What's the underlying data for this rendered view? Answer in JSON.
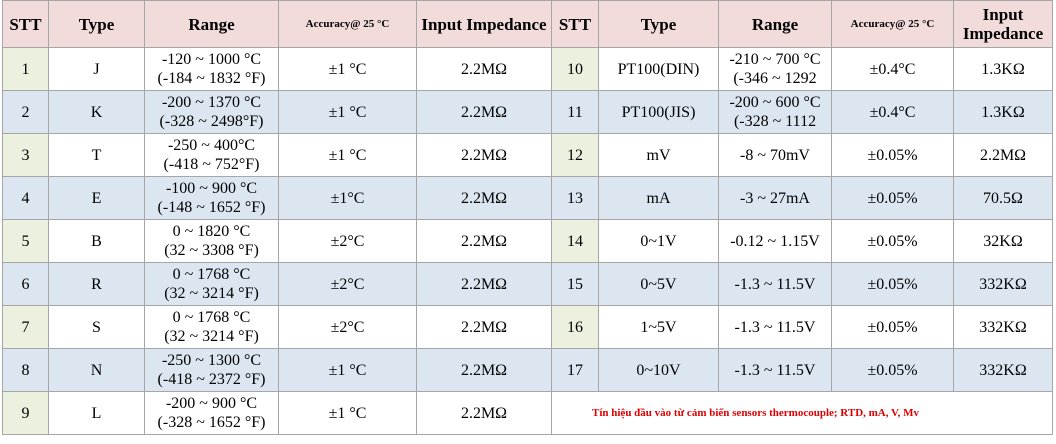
{
  "table": {
    "header": [
      "STT",
      "Type",
      "Range",
      "Accuracy@ 25 °C",
      "Input Impedance",
      "STT",
      "Type",
      "Range",
      "Accuracy@ 25 °C",
      "Input Impedance"
    ],
    "rows": [
      {
        "left": [
          "1",
          "J",
          [
            "-120 ~ 1000 °C",
            "(-184 ~ 1832 °F)"
          ],
          "±1 °C",
          "2.2MΩ"
        ],
        "right": [
          "10",
          "PT100(DIN)",
          [
            "-210 ~ 700 °C",
            "(-346 ~ 1292"
          ],
          "±0.4°C",
          "1.3KΩ"
        ]
      },
      {
        "left": [
          "2",
          "K",
          [
            "-200 ~ 1370 °C",
            "(-328 ~ 2498°F)"
          ],
          "±1 °C",
          "2.2MΩ"
        ],
        "right": [
          "11",
          "PT100(JIS)",
          [
            "-200 ~ 600 °C",
            "(-328 ~ 1112"
          ],
          "±0.4°C",
          "1.3KΩ"
        ]
      },
      {
        "left": [
          "3",
          "T",
          [
            "-250 ~ 400°C",
            "(-418 ~ 752°F)"
          ],
          "±1 °C",
          "2.2MΩ"
        ],
        "right": [
          "12",
          "mV",
          [
            "-8 ~ 70mV"
          ],
          "±0.05%",
          "2.2MΩ"
        ]
      },
      {
        "left": [
          "4",
          "E",
          [
            "-100 ~ 900 °C",
            "(-148 ~ 1652 °F)"
          ],
          "±1°C",
          "2.2MΩ"
        ],
        "right": [
          "13",
          "mA",
          [
            "-3 ~ 27mA"
          ],
          "±0.05%",
          "70.5Ω"
        ]
      },
      {
        "left": [
          "5",
          "B",
          [
            "0 ~ 1820 °C",
            "(32 ~ 3308 °F)"
          ],
          "±2°C",
          "2.2MΩ"
        ],
        "right": [
          "14",
          "0~1V",
          [
            "-0.12 ~ 1.15V"
          ],
          "±0.05%",
          "32KΩ"
        ]
      },
      {
        "left": [
          "6",
          "R",
          [
            "0 ~ 1768 °C",
            "(32 ~ 3214 °F)"
          ],
          "±2°C",
          "2.2MΩ"
        ],
        "right": [
          "15",
          "0~5V",
          [
            "-1.3 ~ 11.5V"
          ],
          "±0.05%",
          "332KΩ"
        ]
      },
      {
        "left": [
          "7",
          "S",
          [
            "0 ~ 1768 °C",
            "(32 ~ 3214 °F)"
          ],
          "±2°C",
          "2.2MΩ"
        ],
        "right": [
          "16",
          "1~5V",
          [
            "-1.3 ~ 11.5V"
          ],
          "±0.05%",
          "332KΩ"
        ]
      },
      {
        "left": [
          "8",
          "N",
          [
            "-250 ~ 1300 °C",
            "(-418 ~ 2372 °F)"
          ],
          "±1 °C",
          "2.2MΩ"
        ],
        "right": [
          "17",
          "0~10V",
          [
            "-1.3 ~ 11.5V"
          ],
          "±0.05%",
          "332KΩ"
        ]
      },
      {
        "left": [
          "9",
          "L",
          [
            "-200 ~ 900 °C",
            "(-328 ~ 1652 °F)"
          ],
          "±1 °C",
          "2.2MΩ"
        ]
      }
    ],
    "note": "Tín hiệu đầu vào từ cảm biến sensors thermocouple; RTD, mA, V, Mv"
  }
}
